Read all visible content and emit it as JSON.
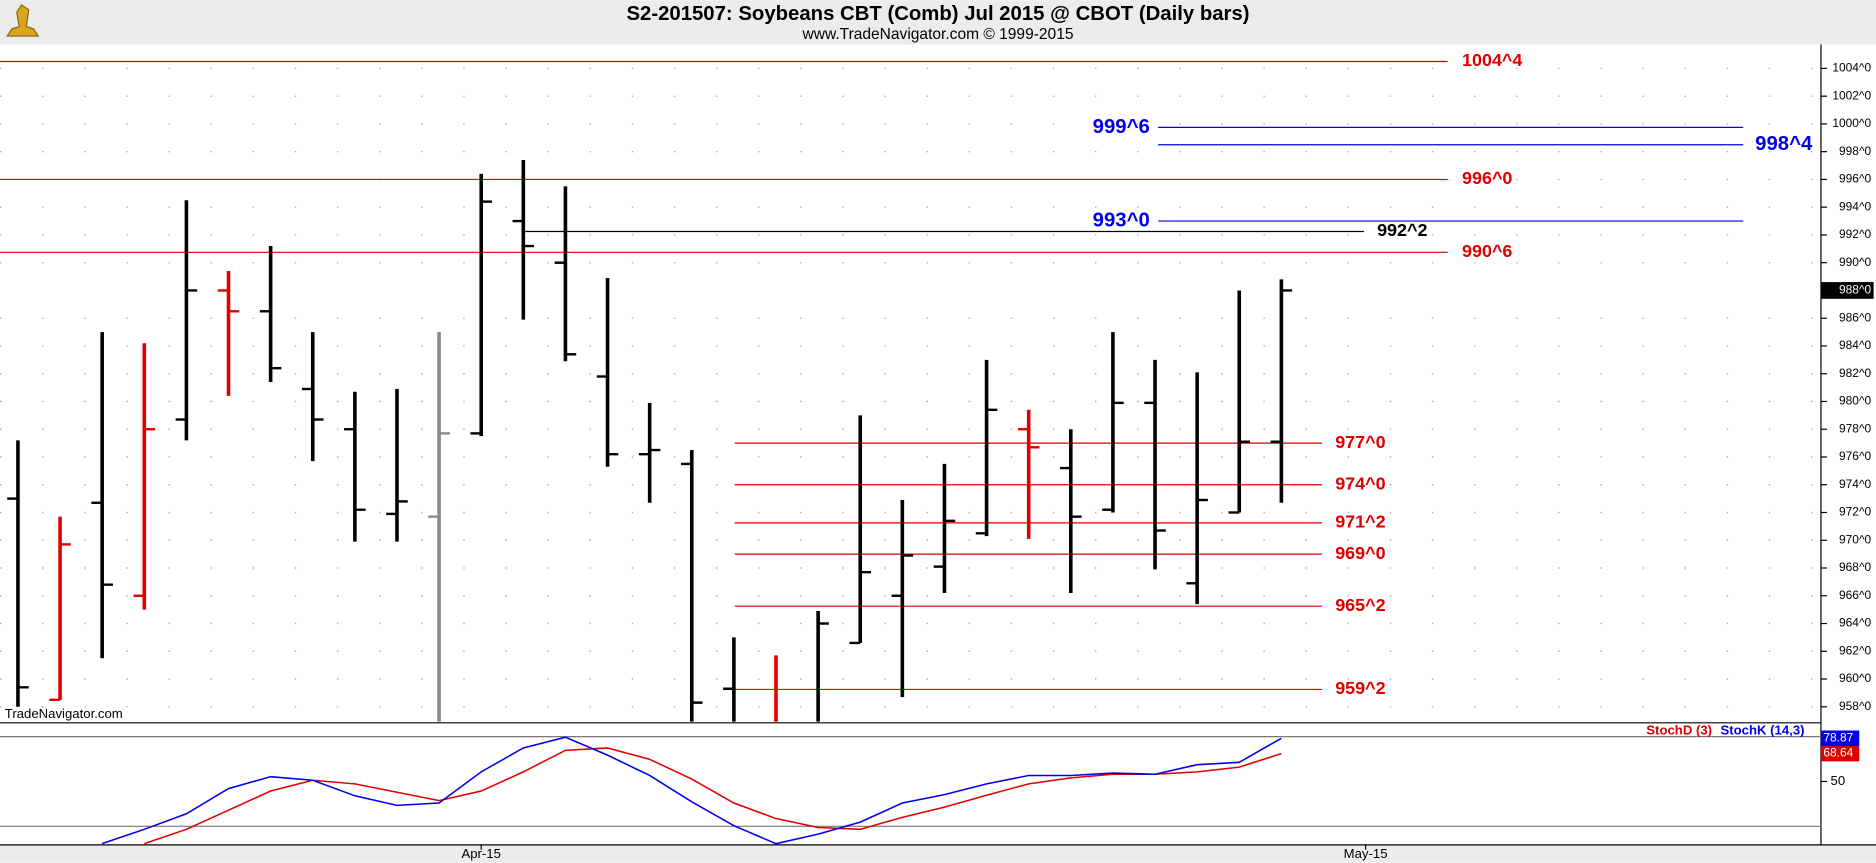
{
  "chart_data": [
    {
      "type": "ohlc",
      "title": "S2-201507:  Soybeans CBT (Comb) Jul 2015 @ CBOT  (Daily bars)",
      "subtitle": "www.TradeNavigator.com © 1999-2015",
      "watermark": "TradeNavigator.com",
      "categories": [
        null,
        null,
        null,
        null,
        null,
        null,
        null,
        null,
        null,
        null,
        null,
        "Apr-15",
        null,
        null,
        null,
        null,
        null,
        null,
        null,
        null,
        null,
        null,
        null,
        null,
        null,
        null,
        null,
        null,
        null,
        null,
        null,
        null,
        "May-15"
      ],
      "open": [
        973,
        958.5,
        972.7,
        966,
        978.7,
        988,
        986.5,
        980.9,
        978,
        971.9,
        971.7,
        977.7,
        993,
        990,
        981.8,
        976.2,
        975.5,
        959.3,
        956.5,
        955.5,
        962.6,
        966,
        968.1,
        970.5,
        978,
        975.2,
        972.2,
        979.9,
        966.9,
        972,
        977.1,
        null,
        null
      ],
      "high": [
        977.2,
        971.7,
        985,
        984.2,
        994.5,
        989.4,
        991.2,
        985,
        980.7,
        980.9,
        985,
        996.4,
        997.4,
        995.5,
        988.9,
        979.9,
        976.5,
        963,
        961.7,
        964.9,
        979,
        972.9,
        975.5,
        983,
        979.4,
        978,
        985,
        983,
        982.1,
        988,
        988.8,
        null,
        null
      ],
      "low": [
        958,
        958.5,
        961.5,
        965,
        977.2,
        980.4,
        981.4,
        975.7,
        969.9,
        969.9,
        955,
        977.5,
        985.9,
        982.9,
        975.3,
        972.7,
        955,
        955,
        955,
        955,
        962.6,
        958.7,
        966.2,
        970.3,
        970.1,
        966.2,
        972,
        967.9,
        965.4,
        972,
        972.7,
        null,
        null
      ],
      "close": [
        959.4,
        969.7,
        966.8,
        978,
        988,
        986.5,
        982.4,
        978.7,
        972.2,
        972.8,
        977.7,
        994.4,
        991.2,
        983.4,
        976.2,
        976.5,
        958.3,
        955.5,
        955.5,
        964,
        967.7,
        968.9,
        971.4,
        979.4,
        976.7,
        971.7,
        979.9,
        970.7,
        972.9,
        977.1,
        988,
        null,
        null
      ],
      "bar_colors": [
        "#000000",
        "#e00000",
        "#000000",
        "#e00000",
        "#000000",
        "#e00000",
        "#000000",
        "#000000",
        "#000000",
        "#000000",
        "#888888",
        "#000000",
        "#000000",
        "#000000",
        "#000000",
        "#000000",
        "#000000",
        "#000000",
        "#e00000",
        "#000000",
        "#000000",
        "#000000",
        "#000000",
        "#000000",
        "#e00000",
        "#000000",
        "#000000",
        "#000000",
        "#000000",
        "#000000",
        "#000000",
        null,
        null
      ],
      "last_price": {
        "value": 988,
        "label": "988^0"
      },
      "levels": [
        {
          "value": 1004.5,
          "label": "1004^4",
          "color": "#e00000"
        },
        {
          "value": 999.75,
          "label": "999^6",
          "color": "#0000ee"
        },
        {
          "value": 998.5,
          "label": "998^4",
          "color": "#0000ee"
        },
        {
          "value": 996,
          "label": "996^0",
          "color": "#e00000"
        },
        {
          "value": 993,
          "label": "993^0",
          "color": "#0000ee"
        },
        {
          "value": 992.25,
          "label": "992^2",
          "color": "#000000"
        },
        {
          "value": 990.75,
          "label": "990^6",
          "color": "#e00000"
        },
        {
          "value": 977,
          "label": "977^0",
          "color": "#e00000"
        },
        {
          "value": 974,
          "label": "974^0",
          "color": "#e00000"
        },
        {
          "value": 971.25,
          "label": "971^2",
          "color": "#e00000"
        },
        {
          "value": 969,
          "label": "969^0",
          "color": "#e00000"
        },
        {
          "value": 965.25,
          "label": "965^2",
          "color": "#e00000"
        },
        {
          "value": 959.25,
          "label": "959^2",
          "color": "#e00000"
        }
      ],
      "ylim": [
        956.93,
        1005.64
      ],
      "yticks": [
        {
          "value": 958,
          "label": "958^0"
        },
        {
          "value": 960,
          "label": "960^0"
        },
        {
          "value": 962,
          "label": "962^0"
        },
        {
          "value": 964,
          "label": "964^0"
        },
        {
          "value": 966,
          "label": "966^0"
        },
        {
          "value": 968,
          "label": "968^0"
        },
        {
          "value": 970,
          "label": "970^0"
        },
        {
          "value": 972,
          "label": "972^0"
        },
        {
          "value": 974,
          "label": "974^0"
        },
        {
          "value": 976,
          "label": "976^0"
        },
        {
          "value": 978,
          "label": "978^0"
        },
        {
          "value": 980,
          "label": "980^0"
        },
        {
          "value": 982,
          "label": "982^0"
        },
        {
          "value": 984,
          "label": "984^0"
        },
        {
          "value": 986,
          "label": "986^0"
        },
        {
          "value": 990,
          "label": "990^0"
        },
        {
          "value": 992,
          "label": "992^0"
        },
        {
          "value": 994,
          "label": "994^0"
        },
        {
          "value": 996,
          "label": "996^0"
        },
        {
          "value": 998,
          "label": "998^0"
        },
        {
          "value": 1000,
          "label": "1000^0"
        },
        {
          "value": 1002,
          "label": "1002^0"
        },
        {
          "value": 1004,
          "label": "1004^0"
        }
      ],
      "grid": true
    },
    {
      "type": "line",
      "series": [
        {
          "name": "StochD (3)",
          "color": "#e00000",
          "values": [
            null,
            null,
            null,
            8.4,
            18,
            30.8,
            43.6,
            50.8,
            48.4,
            42.8,
            37.2,
            43.6,
            56.4,
            70.8,
            72.4,
            64.8,
            51.6,
            35.6,
            25.2,
            19.2,
            18,
            26,
            32.8,
            40.8,
            48.4,
            52.4,
            54.8,
            54.8,
            56.4,
            59.6,
            68.64,
            null,
            null
          ]
        },
        {
          "name": "StochK (14,3)",
          "color": "#0000ee",
          "values": [
            null,
            null,
            8.4,
            18,
            28.4,
            45.2,
            53.2,
            50.8,
            40.4,
            34,
            35.6,
            56.4,
            72.4,
            79.6,
            67.6,
            54,
            36.4,
            20.4,
            8.4,
            14.8,
            22.8,
            35.6,
            41.2,
            48.4,
            54,
            54,
            55.6,
            54.8,
            61.2,
            62.8,
            78.87,
            null,
            null
          ]
        }
      ],
      "bands": [
        20,
        80
      ],
      "ylim": [
        8,
        88
      ],
      "yticks": [
        50
      ]
    }
  ]
}
